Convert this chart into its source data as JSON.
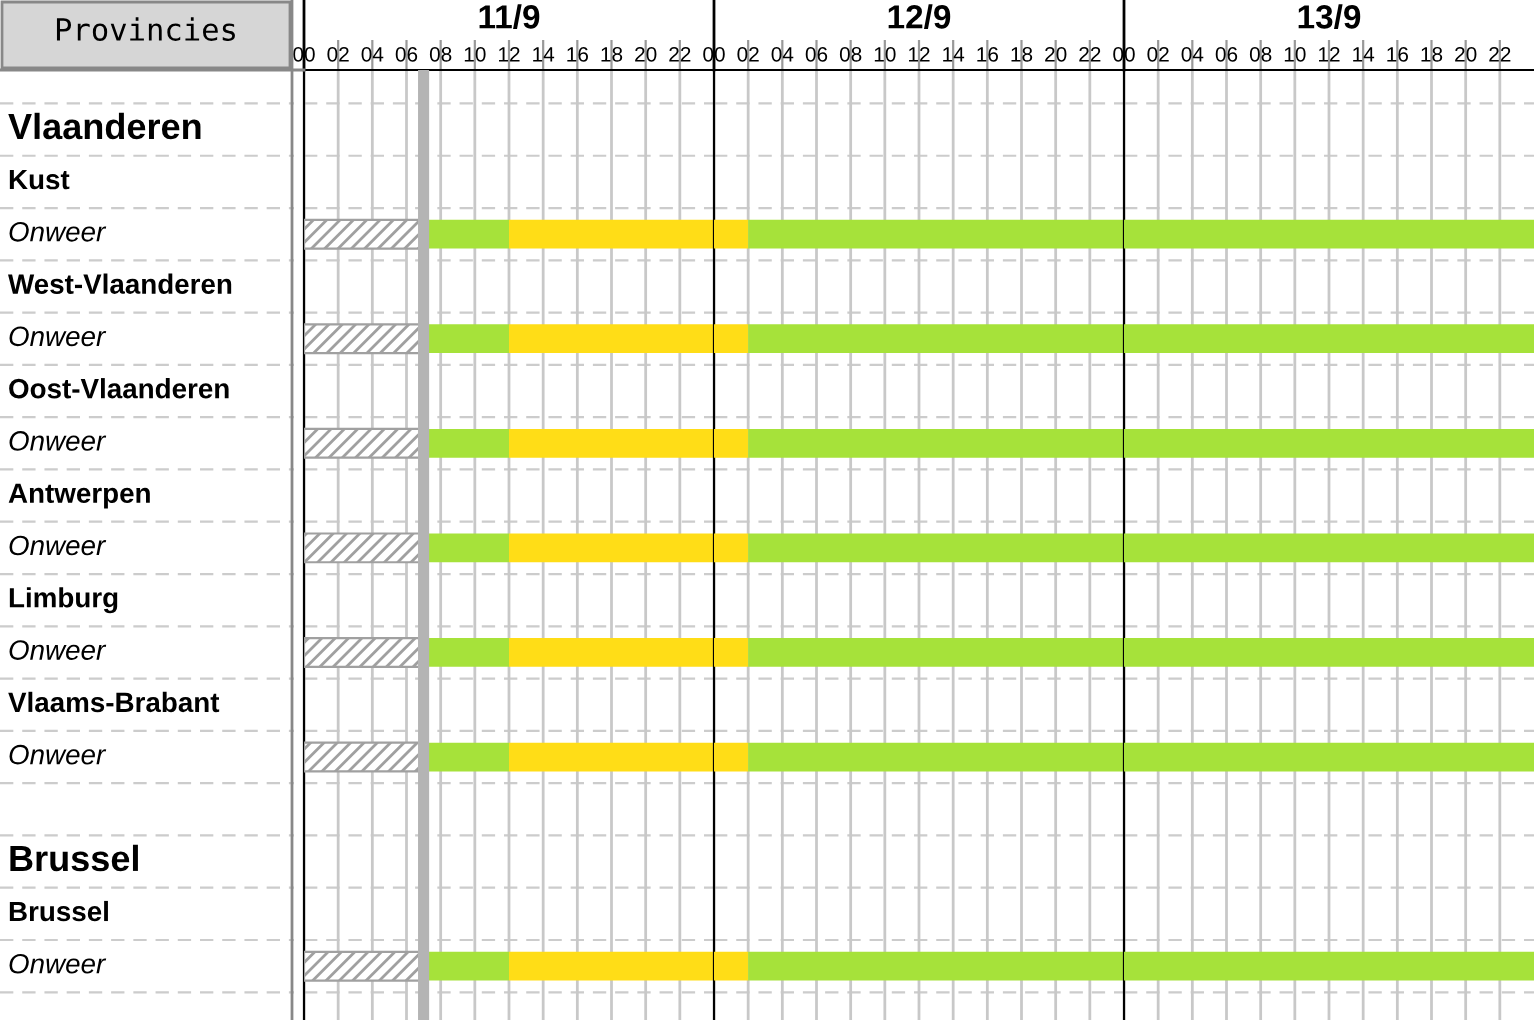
{
  "chart_data": [
    {
      "type": "bar",
      "orientation": "horizontal",
      "stacked": true,
      "title": "11/9",
      "ylabel": "Provincies",
      "categories": [
        null,
        "Vlaanderen",
        "Kust",
        "Onweer",
        "West-Vlaanderen",
        "Onweer",
        "Oost-Vlaanderen",
        "Onweer",
        "Antwerpen",
        "Onweer",
        "Limburg",
        "Onweer",
        "Vlaams-Brabant",
        "Onweer",
        null,
        "Brussel",
        "Brussel",
        "Onweer"
      ],
      "series": [
        {
          "color": "#a0a0a0",
          "values": [
            null,
            null,
            null,
            7,
            null,
            7,
            null,
            7,
            null,
            7,
            null,
            7,
            null,
            7,
            null,
            null,
            null,
            7
          ]
        },
        {
          "color": "#a6e23a",
          "values": [
            null,
            null,
            null,
            5,
            null,
            5,
            null,
            5,
            null,
            5,
            null,
            5,
            null,
            5,
            null,
            null,
            null,
            5
          ]
        },
        {
          "color": "#ffdd17",
          "values": [
            null,
            null,
            null,
            12,
            null,
            12,
            null,
            12,
            null,
            12,
            null,
            12,
            null,
            12,
            null,
            null,
            null,
            12
          ]
        }
      ],
      "xlim": [
        0,
        24
      ],
      "xticks": [
        {
          "value": 0,
          "label": "00"
        },
        {
          "value": 2,
          "label": "02"
        },
        {
          "value": 4,
          "label": "04"
        },
        {
          "value": 6,
          "label": "06"
        },
        {
          "value": 8,
          "label": "08"
        },
        10,
        12,
        14,
        16,
        18,
        20,
        22
      ],
      "ref_lines": [
        {
          "axis": "x",
          "value": 7,
          "label": null,
          "color": "#b4b4b4"
        }
      ],
      "grid": true,
      "legend": false
    },
    {
      "type": "bar",
      "orientation": "horizontal",
      "stacked": true,
      "title": "12/9",
      "categories": [
        null,
        null,
        null,
        null,
        null,
        null,
        null,
        null,
        null,
        null,
        null,
        null,
        null,
        null,
        null,
        null,
        null,
        null
      ],
      "series": [
        {
          "color": "#ffdd17",
          "values": [
            null,
            null,
            null,
            2,
            null,
            2,
            null,
            2,
            null,
            2,
            null,
            2,
            null,
            2,
            null,
            null,
            null,
            2
          ]
        },
        {
          "color": "#a6e23a",
          "values": [
            null,
            null,
            null,
            22,
            null,
            22,
            null,
            22,
            null,
            22,
            null,
            22,
            null,
            22,
            null,
            null,
            null,
            22
          ]
        }
      ],
      "xlim": [
        0,
        24
      ],
      "xticks": [
        {
          "value": 0,
          "label": "00"
        },
        {
          "value": 2,
          "label": "02"
        },
        {
          "value": 4,
          "label": "04"
        },
        {
          "value": 6,
          "label": "06"
        },
        {
          "value": 8,
          "label": "08"
        },
        10,
        12,
        14,
        16,
        18,
        20,
        22
      ],
      "tick_labels": "x",
      "grid": true,
      "legend": false
    },
    {
      "type": "bar",
      "orientation": "horizontal",
      "stacked": true,
      "title": "13/9",
      "categories": [
        null,
        null,
        null,
        null,
        null,
        null,
        null,
        null,
        null,
        null,
        null,
        null,
        null,
        null,
        null,
        null,
        null,
        null
      ],
      "series": [
        {
          "color": "#a6e23a",
          "values": [
            null,
            null,
            null,
            24,
            null,
            24,
            null,
            24,
            null,
            24,
            null,
            24,
            null,
            24,
            null,
            null,
            null,
            24
          ]
        }
      ],
      "xlim": [
        0,
        24
      ],
      "xticks": [
        {
          "value": 0,
          "label": "00"
        },
        {
          "value": 2,
          "label": "02"
        },
        {
          "value": 4,
          "label": "04"
        },
        {
          "value": 6,
          "label": "06"
        },
        {
          "value": 8,
          "label": "08"
        },
        10,
        12,
        14,
        16,
        18,
        20,
        22
      ],
      "tick_labels": "x",
      "grid": true,
      "legend": false
    }
  ]
}
